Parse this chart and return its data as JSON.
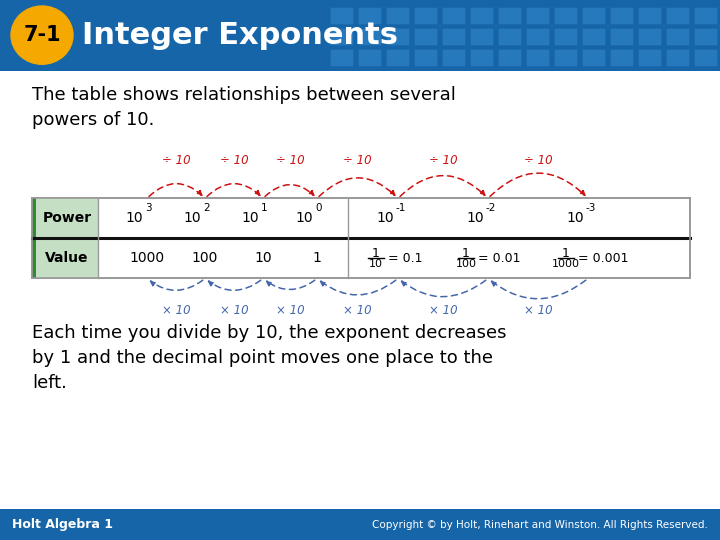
{
  "title": "Integer Exponents",
  "lesson_num": "7-1",
  "header_bg": "#1565a8",
  "oval_color": "#f5a800",
  "oval_text_color": "#000000",
  "header_text_color": "#ffffff",
  "body_bg": "#ffffff",
  "footer_bg": "#1565a8",
  "footer_text": "Holt Algebra 1",
  "footer_right": "Copyright © by Holt, Rinehart and Winston. All Rights Reserved.",
  "intro_text": "The table shows relationships between several\npowers of 10.",
  "body_text": "Each time you divide by 10, the exponent decreases\nby 1 and the decimal point moves one place to the\nleft.",
  "table_label_bg": "#c5dfc5",
  "table_border": "#999999",
  "green_stripe": "#2e8b2e",
  "arrow_top_color": "#cc1111",
  "arrow_bot_color": "#4466aa",
  "div10_label": "÷ 10",
  "times10_label": "× 10",
  "power_bases": [
    "10",
    "10",
    "10",
    "10",
    "10",
    "10",
    "10"
  ],
  "power_exps": [
    "3",
    "2",
    "1",
    "0",
    "-1",
    "-2",
    "-3"
  ],
  "simple_values": [
    "1000",
    "100",
    "10",
    "1"
  ],
  "frac_nums": [
    "1",
    "1",
    "1"
  ],
  "frac_dens": [
    "10",
    "100",
    "1000"
  ],
  "frac_decimals": [
    "= 0.1",
    "= 0.01",
    "= 0.001"
  ]
}
